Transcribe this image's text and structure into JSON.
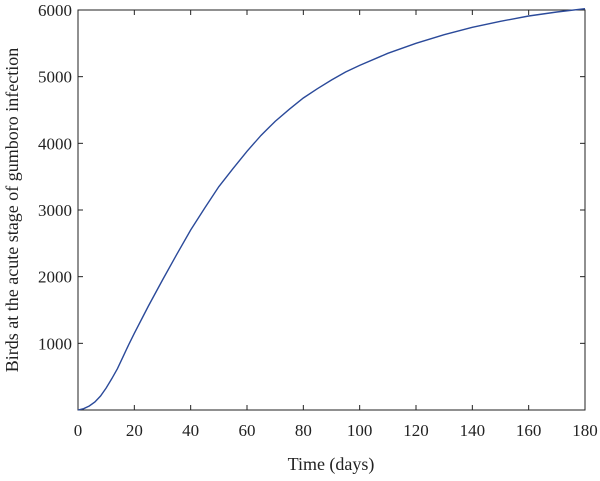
{
  "chart_data": {
    "type": "line",
    "title": "",
    "xlabel": "Time (days)",
    "ylabel": "Birds at the acute stage of gumboro infection",
    "xlim": [
      0,
      180
    ],
    "ylim": [
      0,
      6000
    ],
    "x_ticks": [
      "0",
      "20",
      "40",
      "60",
      "80",
      "100",
      "120",
      "140",
      "160",
      "180"
    ],
    "y_ticks": [
      "1000",
      "2000",
      "3000",
      "4000",
      "5000",
      "6000"
    ],
    "grid": false,
    "legend": "none",
    "line_color": "#2b4a9a",
    "series": [
      {
        "x": [
          0,
          2,
          4,
          6,
          8,
          10,
          12,
          14,
          16,
          18,
          20,
          25,
          30,
          35,
          40,
          45,
          50,
          55,
          60,
          65,
          70,
          75,
          80,
          85,
          90,
          95,
          100,
          110,
          120,
          130,
          140,
          150,
          160,
          170,
          180
        ],
        "values": [
          0,
          20,
          60,
          120,
          210,
          330,
          470,
          620,
          800,
          980,
          1150,
          1560,
          1950,
          2330,
          2700,
          3030,
          3350,
          3620,
          3880,
          4120,
          4330,
          4510,
          4680,
          4820,
          4950,
          5070,
          5170,
          5350,
          5500,
          5630,
          5740,
          5830,
          5910,
          5970,
          6020
        ]
      }
    ]
  }
}
